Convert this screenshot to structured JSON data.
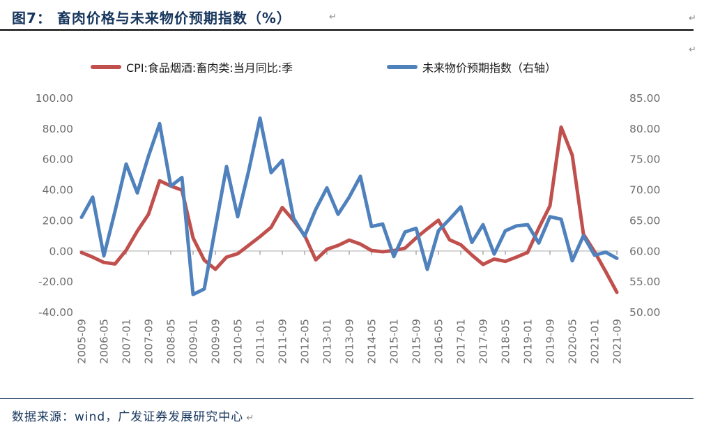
{
  "header": {
    "title": "图7：  畜肉价格与未来物价预期指数（%）"
  },
  "marks": {
    "pilcrow": "↵"
  },
  "legend": {
    "items": [
      {
        "label": "CPI:食品烟酒:畜肉类:当月同比:季",
        "color": "#c0504d"
      },
      {
        "label": "未来物价预期指数（右轴）",
        "color": "#4f81bd"
      }
    ]
  },
  "footer": {
    "text": "数据来源：wind，广发证券发展研究中心"
  },
  "colors": {
    "cpi_line": "#c0504d",
    "index_line": "#4f81bd",
    "gridline": "#c9c9c9",
    "tick": "#a6a6a6",
    "axis_label": "#6e6e6e"
  },
  "chart_data": {
    "type": "line",
    "title": "畜肉价格与未来物价预期指数（%）",
    "x": [
      "2005-09",
      "2006-01",
      "2006-05",
      "2006-09",
      "2007-01",
      "2007-05",
      "2007-09",
      "2008-01",
      "2008-05",
      "2008-09",
      "2009-01",
      "2009-05",
      "2009-09",
      "2010-01",
      "2010-05",
      "2010-09",
      "2011-01",
      "2011-05",
      "2011-09",
      "2012-01",
      "2012-05",
      "2012-09",
      "2013-01",
      "2013-05",
      "2013-09",
      "2014-01",
      "2014-05",
      "2014-09",
      "2015-01",
      "2015-05",
      "2015-09",
      "2016-01",
      "2016-05",
      "2016-09",
      "2017-01",
      "2017-05",
      "2017-09",
      "2018-01",
      "2018-05",
      "2018-09",
      "2019-01",
      "2019-05",
      "2019-09",
      "2020-01",
      "2020-05",
      "2020-09",
      "2021-01",
      "2021-05",
      "2021-09"
    ],
    "x_tick_labels": [
      "2005-09",
      "2006-05",
      "2007-01",
      "2007-09",
      "2008-05",
      "2009-01",
      "2009-09",
      "2010-05",
      "2011-01",
      "2011-09",
      "2012-05",
      "2013-01",
      "2013-09",
      "2014-05",
      "2015-01",
      "2015-09",
      "2016-05",
      "2017-01",
      "2017-09",
      "2018-05",
      "2019-01",
      "2019-09",
      "2020-05",
      "2021-01",
      "2021-09"
    ],
    "series": [
      {
        "name": "CPI:食品烟酒:畜肉类:当月同比:季",
        "axis": "left",
        "color": "#c0504d",
        "values": [
          -1.0,
          -4.0,
          -7.5,
          -8.5,
          0.5,
          13.0,
          24.0,
          45.9,
          42.5,
          39.8,
          8.5,
          -6.0,
          -12.0,
          -4.0,
          -1.8,
          3.8,
          9.4,
          15.5,
          28.4,
          20.0,
          10.2,
          -5.8,
          1.1,
          3.6,
          7.1,
          4.5,
          0.3,
          -0.5,
          0.2,
          1.8,
          8.5,
          14.5,
          20.1,
          7.3,
          4.1,
          -2.7,
          -8.8,
          -5.3,
          -6.8,
          -4.0,
          -0.9,
          15.0,
          29.5,
          81.0,
          62.6,
          11.0,
          -0.5,
          -13.5,
          -27.0
        ]
      },
      {
        "name": "未来物价预期指数（右轴）",
        "axis": "right",
        "color": "#4f81bd",
        "values": [
          65.5,
          68.8,
          59.2,
          66.5,
          74.2,
          69.5,
          75.5,
          80.8,
          70.6,
          72.0,
          52.9,
          53.8,
          63.8,
          73.8,
          65.6,
          73.2,
          81.7,
          72.8,
          74.8,
          65.4,
          62.4,
          66.8,
          70.3,
          66.0,
          68.8,
          72.2,
          64.0,
          64.4,
          59.1,
          63.1,
          63.7,
          57.0,
          63.3,
          65.2,
          67.2,
          61.4,
          64.3,
          59.5,
          63.3,
          64.1,
          64.3,
          61.3,
          65.6,
          65.2,
          58.4,
          62.5,
          59.3,
          59.8,
          58.8
        ]
      }
    ],
    "left_axis": {
      "min": -40,
      "max": 100,
      "tick_step": 20,
      "tick_labels": [
        "100.00",
        "80.00",
        "60.00",
        "40.00",
        "20.00",
        "0.00",
        "-20.00",
        "-40.00"
      ]
    },
    "right_axis": {
      "min": 50,
      "max": 85,
      "tick_step": 5,
      "tick_labels": [
        "85.00",
        "80.00",
        "75.00",
        "70.00",
        "65.00",
        "60.00",
        "55.00",
        "50.00"
      ]
    },
    "gridlines": {
      "horizontal_at_left_value": [
        0
      ]
    },
    "legend_position": "top"
  }
}
